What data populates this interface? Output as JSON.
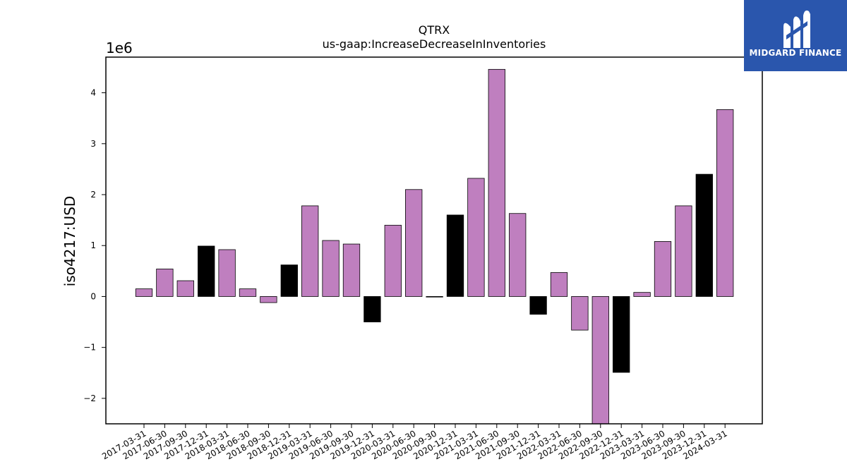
{
  "brand": {
    "name": "MIDGARD FINANCE",
    "bg": "#2a56ad"
  },
  "chart_data": {
    "type": "bar",
    "title": "QTRX",
    "subtitle": "us-gaap:IncreaseDecreaseInInventories",
    "ylabel": "iso4217:USD",
    "xlabel": "",
    "y_multiplier_label": "1e6",
    "y_multiplier": 1000000,
    "ylim": [
      -2500000,
      4700000
    ],
    "yticks": [
      -2,
      -1,
      0,
      1,
      2,
      3,
      4
    ],
    "ytick_labels": [
      "−2",
      "−1",
      "0",
      "1",
      "2",
      "3",
      "4"
    ],
    "grid": false,
    "legend": "none",
    "colors": {
      "quarter": "#bf7fbf",
      "year_end": "#000000"
    },
    "categories": [
      "2017-03-31",
      "2017-06-30",
      "2017-09-30",
      "2017-12-31",
      "2018-03-31",
      "2018-06-30",
      "2018-09-30",
      "2018-12-31",
      "2019-03-31",
      "2019-06-30",
      "2019-09-30",
      "2019-12-31",
      "2020-03-31",
      "2020-06-30",
      "2020-09-30",
      "2020-12-31",
      "2021-03-31",
      "2021-06-30",
      "2021-09-30",
      "2021-12-31",
      "2022-03-31",
      "2022-06-30",
      "2022-09-30",
      "2022-12-31",
      "2023-03-31",
      "2023-06-30",
      "2023-09-30",
      "2023-12-31",
      "2024-03-31"
    ],
    "values": [
      150000,
      540000,
      310000,
      990000,
      920000,
      150000,
      -120000,
      620000,
      1780000,
      1100000,
      1030000,
      -500000,
      1400000,
      2100000,
      -10000,
      1600000,
      2320000,
      4460000,
      1630000,
      -350000,
      470000,
      -660000,
      -2500000,
      -1490000,
      80000,
      1080000,
      1780000,
      2400000,
      3670000
    ],
    "highlight": [
      false,
      false,
      false,
      true,
      false,
      false,
      false,
      true,
      false,
      false,
      false,
      true,
      false,
      false,
      false,
      true,
      false,
      false,
      false,
      true,
      false,
      false,
      false,
      true,
      false,
      false,
      false,
      true,
      false
    ]
  }
}
